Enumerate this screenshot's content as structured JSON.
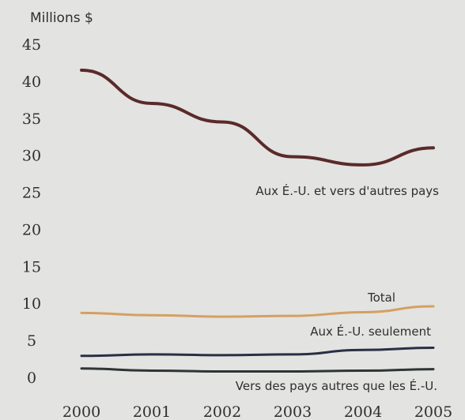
{
  "chart_data": {
    "type": "line",
    "unit_label": "Millions $",
    "x": [
      "2000",
      "2001",
      "2002",
      "2003",
      "2004",
      "2005"
    ],
    "ylim": [
      0,
      45
    ],
    "yticks": [
      0,
      5,
      10,
      15,
      20,
      25,
      30,
      35,
      40,
      45
    ],
    "grid": false,
    "series": [
      {
        "name": "Aux É.-U. et vers d'autres pays",
        "color": "#5a2a2a",
        "values": [
          41.5,
          37.0,
          34.5,
          29.8,
          28.7,
          31.0
        ]
      },
      {
        "name": "Total",
        "color": "#d4a060",
        "values": [
          8.7,
          8.4,
          8.2,
          8.3,
          8.8,
          9.6
        ]
      },
      {
        "name": "Aux É.-U. seulement",
        "color": "#2a2f45",
        "values": [
          2.9,
          3.1,
          3.0,
          3.1,
          3.7,
          4.0
        ]
      },
      {
        "name": "Vers des pays autres que les É.-U.",
        "color": "#2f3436",
        "values": [
          1.2,
          0.9,
          0.8,
          0.8,
          0.9,
          1.1
        ]
      }
    ]
  }
}
